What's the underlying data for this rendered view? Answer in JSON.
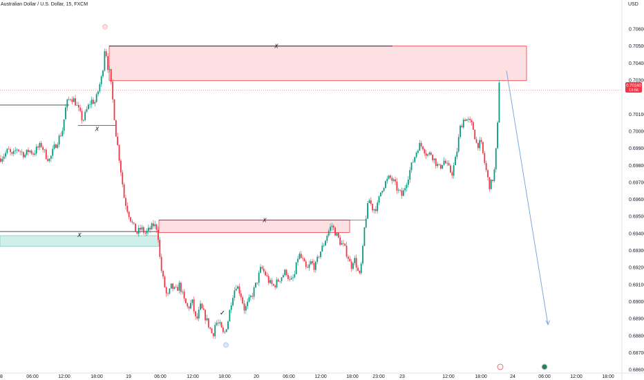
{
  "header": {
    "symbol_title": "Australian Dollar / U.S. Dollar, 15, FXCM",
    "currency": "USD"
  },
  "price_badge": {
    "price": "0.70240",
    "countdown": "13:56"
  },
  "colors": {
    "up": "#089981",
    "down": "#f23645",
    "zone_fill": "#fccbcd",
    "zone_border": "#f23645",
    "green_zone_fill": "#c8ece5",
    "projection": "#7ea6dc",
    "badge": "#f23645"
  },
  "chart_data": {
    "type": "candlestick",
    "symbol": "Australian Dollar / U.S. Dollar, 15, FXCM",
    "y_axis": {
      "ticks": [
        "0.70600",
        "0.70500",
        "0.70400",
        "0.70300",
        "0.70100",
        "0.70000",
        "0.69900",
        "0.69800",
        "0.69700",
        "0.69600",
        "0.69500",
        "0.69400",
        "0.69300",
        "0.69200",
        "0.69100",
        "0.69000",
        "0.68900",
        "0.68800",
        "0.68700",
        "0.68600"
      ],
      "range": [
        0.6858,
        0.7073
      ]
    },
    "x_axis": {
      "ticks": [
        "8",
        "06:00",
        "12:00",
        "18:00",
        "19",
        "06:00",
        "12:00",
        "18:00",
        "20",
        "06:00",
        "12:00",
        "18:00",
        "23:00",
        "23",
        "12:00",
        "18:00",
        "24",
        "06:00",
        "12:00",
        "18:00"
      ]
    },
    "series": [
      {
        "name": "",
        "anchors": [
          [
            0,
            0.6984
          ],
          [
            6,
            0.6986
          ],
          [
            12,
            0.6989
          ],
          [
            18,
            0.6985
          ],
          [
            24,
            0.699
          ],
          [
            30,
            0.6988
          ],
          [
            36,
            0.6986
          ],
          [
            42,
            0.6989
          ],
          [
            48,
            0.6987
          ],
          [
            54,
            0.699
          ],
          [
            60,
            0.6992
          ],
          [
            66,
            0.6986
          ],
          [
            72,
            0.6983
          ],
          [
            78,
            0.699
          ],
          [
            84,
            0.6995
          ],
          [
            90,
            0.7
          ],
          [
            96,
            0.7016
          ],
          [
            102,
            0.702
          ],
          [
            108,
            0.7018
          ],
          [
            114,
            0.7012
          ],
          [
            120,
            0.7006
          ],
          [
            126,
            0.7013
          ],
          [
            132,
            0.7018
          ],
          [
            138,
            0.7017
          ],
          [
            144,
            0.7027
          ],
          [
            148,
            0.7033
          ],
          [
            152,
            0.7051
          ],
          [
            156,
            0.7038
          ],
          [
            158,
            0.7036
          ],
          [
            160,
            0.703
          ],
          [
            164,
            0.7015
          ],
          [
            168,
            0.6998
          ],
          [
            174,
            0.698
          ],
          [
            180,
            0.696
          ],
          [
            186,
            0.6952
          ],
          [
            192,
            0.6945
          ],
          [
            198,
            0.694
          ],
          [
            204,
            0.6943
          ],
          [
            210,
            0.694
          ],
          [
            216,
            0.6942
          ],
          [
            222,
            0.6945
          ],
          [
            228,
            0.6943
          ],
          [
            232,
            0.6922
          ],
          [
            236,
            0.6913
          ],
          [
            242,
            0.6902
          ],
          [
            248,
            0.6909
          ],
          [
            254,
            0.6906
          ],
          [
            260,
            0.691
          ],
          [
            266,
            0.6901
          ],
          [
            272,
            0.6896
          ],
          [
            278,
            0.69
          ],
          [
            284,
            0.6888
          ],
          [
            290,
            0.6897
          ],
          [
            296,
            0.6892
          ],
          [
            302,
            0.6886
          ],
          [
            308,
            0.688
          ],
          [
            312,
            0.6888
          ],
          [
            318,
            0.6886
          ],
          [
            324,
            0.688
          ],
          [
            330,
            0.6889
          ],
          [
            336,
            0.6903
          ],
          [
            342,
            0.691
          ],
          [
            348,
            0.6905
          ],
          [
            354,
            0.6895
          ],
          [
            360,
            0.69
          ],
          [
            366,
            0.6905
          ],
          [
            372,
            0.6912
          ],
          [
            378,
            0.692
          ],
          [
            384,
            0.6916
          ],
          [
            390,
            0.6911
          ],
          [
            396,
            0.6909
          ],
          [
            402,
            0.6912
          ],
          [
            408,
            0.6915
          ],
          [
            414,
            0.6918
          ],
          [
            420,
            0.6911
          ],
          [
            426,
            0.6915
          ],
          [
            432,
            0.6928
          ],
          [
            438,
            0.6924
          ],
          [
            444,
            0.6918
          ],
          [
            450,
            0.6923
          ],
          [
            456,
            0.692
          ],
          [
            462,
            0.6928
          ],
          [
            468,
            0.6933
          ],
          [
            474,
            0.694
          ],
          [
            480,
            0.6945
          ],
          [
            486,
            0.694
          ],
          [
            492,
            0.6935
          ],
          [
            498,
            0.6932
          ],
          [
            504,
            0.6926
          ],
          [
            508,
            0.692
          ],
          [
            512,
            0.6926
          ],
          [
            516,
            0.6921
          ],
          [
            520,
            0.6914
          ],
          [
            524,
            0.6925
          ],
          [
            528,
            0.6946
          ],
          [
            534,
            0.696
          ],
          [
            540,
            0.6954
          ],
          [
            546,
            0.6956
          ],
          [
            552,
            0.6966
          ],
          [
            558,
            0.697
          ],
          [
            564,
            0.6973
          ],
          [
            570,
            0.697
          ],
          [
            576,
            0.6965
          ],
          [
            582,
            0.6962
          ],
          [
            588,
            0.697
          ],
          [
            594,
            0.6978
          ],
          [
            600,
            0.6985
          ],
          [
            606,
            0.6992
          ],
          [
            612,
            0.6991
          ],
          [
            618,
            0.6986
          ],
          [
            624,
            0.6987
          ],
          [
            630,
            0.6982
          ],
          [
            636,
            0.6978
          ],
          [
            642,
            0.6983
          ],
          [
            648,
            0.6979
          ],
          [
            654,
            0.6975
          ],
          [
            660,
            0.6985
          ],
          [
            666,
            0.7002
          ],
          [
            672,
            0.7008
          ],
          [
            678,
            0.7006
          ],
          [
            684,
            0.7003
          ],
          [
            690,
            0.6992
          ],
          [
            696,
            0.6993
          ],
          [
            702,
            0.698
          ],
          [
            708,
            0.6968
          ],
          [
            712,
            0.697
          ],
          [
            716,
            0.6978
          ],
          [
            720,
            0.7002
          ],
          [
            722,
            0.7031
          ],
          [
            724,
            0.7026
          ]
        ]
      }
    ],
    "zones": [
      {
        "kind": "supply",
        "label": "X",
        "x1": 158,
        "x2": 762,
        "y_top": 0.705,
        "y_bottom": 0.70297
      },
      {
        "kind": "supply",
        "label": "X",
        "x1": 230,
        "x2": 506,
        "y_top": 0.69478,
        "y_bottom": 0.69406
      },
      {
        "kind": "demand",
        "label": "",
        "x1": 0,
        "x2": 230,
        "y_top": 0.69387,
        "y_bottom": 0.69325
      }
    ],
    "level_lines": [
      {
        "label": "",
        "x1": 0,
        "x2": 100,
        "y": 0.70154
      },
      {
        "label": "X",
        "x1": 113,
        "x2": 168,
        "y": 0.70035
      },
      {
        "label": "X",
        "x1": 0,
        "x2": 230,
        "y": 0.69411
      }
    ],
    "markers": [
      {
        "kind": "pivot-high",
        "x": 152,
        "y": 0.70613
      },
      {
        "kind": "pivot-low",
        "x": 327,
        "y": 0.68745
      },
      {
        "kind": "check",
        "x": 322,
        "y": 0.6892
      }
    ],
    "projection": {
      "x1": 733,
      "y1": 0.70355,
      "x2": 793,
      "y2": 0.68865
    },
    "current_price": 0.7024,
    "grid": false
  }
}
